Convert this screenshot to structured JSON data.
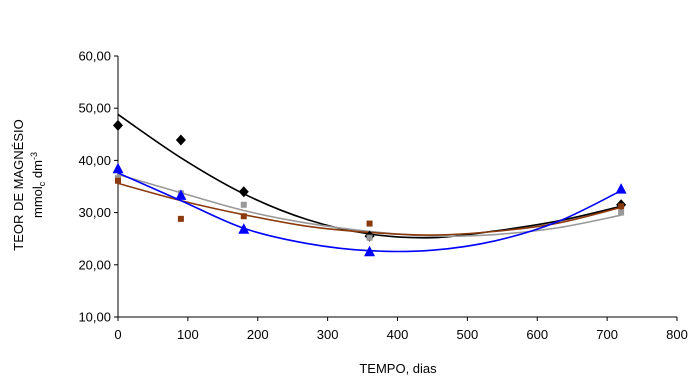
{
  "chart_data": {
    "type": "scatter",
    "xlabel": "TEMPO, dias",
    "ylabel_line1": "TEOR DE MAGNÉSIO",
    "ylabel_line2": {
      "base": "mmol",
      "sub": "c",
      "mid": " dm",
      "sup": "-3"
    },
    "xlim": [
      0,
      800
    ],
    "ylim": [
      10,
      60
    ],
    "x_ticks": [
      0,
      100,
      200,
      300,
      400,
      500,
      600,
      700,
      800
    ],
    "y_ticks": [
      10,
      20,
      30,
      40,
      50,
      60
    ],
    "y_tick_labels": [
      "10,00",
      "20,00",
      "30,00",
      "40,00",
      "50,00",
      "60,00"
    ],
    "grid": false,
    "legend": "none",
    "series": [
      {
        "color": "#000000",
        "marker": "diamond",
        "points": [
          [
            0,
            46.7
          ],
          [
            90,
            43.9
          ],
          [
            180,
            34.0
          ],
          [
            360,
            25.5
          ],
          [
            720,
            31.5
          ]
        ],
        "trend": [
          [
            0,
            48.8
          ],
          [
            90,
            40.5
          ],
          [
            180,
            33.6
          ],
          [
            270,
            28.7
          ],
          [
            360,
            25.9
          ],
          [
            450,
            25.2
          ],
          [
            540,
            26.5
          ],
          [
            630,
            28.4
          ],
          [
            720,
            31.2
          ]
        ]
      },
      {
        "color": "#999999",
        "marker": "square",
        "points": [
          [
            0,
            36.6
          ],
          [
            90,
            33.7
          ],
          [
            180,
            31.5
          ],
          [
            360,
            25.2
          ],
          [
            720,
            30.0
          ]
        ],
        "trend": [
          [
            0,
            37.3
          ],
          [
            90,
            33.8
          ],
          [
            180,
            30.4
          ],
          [
            270,
            28.0
          ],
          [
            360,
            26.4
          ],
          [
            450,
            25.5
          ],
          [
            540,
            25.8
          ],
          [
            630,
            27.1
          ],
          [
            720,
            29.5
          ]
        ]
      },
      {
        "color": "#8b3a0e",
        "marker": "square",
        "points": [
          [
            0,
            36.1
          ],
          [
            90,
            28.8
          ],
          [
            180,
            29.3
          ],
          [
            360,
            27.9
          ],
          [
            720,
            31.2
          ]
        ],
        "trend": [
          [
            0,
            35.6
          ],
          [
            90,
            32.3
          ],
          [
            180,
            29.6
          ],
          [
            270,
            27.4
          ],
          [
            360,
            26.2
          ],
          [
            450,
            25.7
          ],
          [
            540,
            26.4
          ],
          [
            630,
            28.0
          ],
          [
            720,
            31.0
          ]
        ]
      },
      {
        "color": "#0000ff",
        "marker": "triangle",
        "points": [
          [
            0,
            38.4
          ],
          [
            90,
            33.3
          ],
          [
            180,
            26.8
          ],
          [
            360,
            22.5
          ],
          [
            720,
            34.5
          ]
        ],
        "trend": [
          [
            0,
            37.6
          ],
          [
            90,
            32.3
          ],
          [
            180,
            27.0
          ],
          [
            270,
            24.1
          ],
          [
            360,
            22.7
          ],
          [
            450,
            22.8
          ],
          [
            540,
            24.6
          ],
          [
            630,
            28.3
          ],
          [
            720,
            34.2
          ]
        ]
      }
    ]
  }
}
